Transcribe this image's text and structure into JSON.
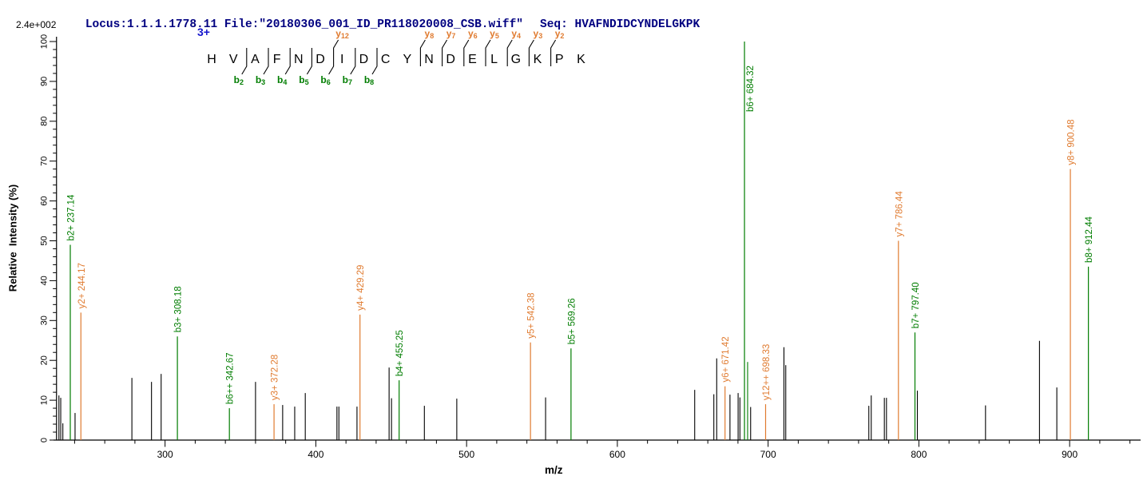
{
  "header": {
    "locus_file": "Locus:1.1.1.1778.11 File:\"20180306_001_ID_PR118020008_CSB.wiff\"",
    "seq": "Seq: HVAFNDIDCYNDELGKPK"
  },
  "peptide_panel": {
    "charge": "3+",
    "sequence": "HVAFNDIDCYNDELGKPK",
    "b_fragments": [
      {
        "ion": "b",
        "sub": "2",
        "cut_after": 2
      },
      {
        "ion": "b",
        "sub": "3",
        "cut_after": 3
      },
      {
        "ion": "b",
        "sub": "4",
        "cut_after": 4
      },
      {
        "ion": "b",
        "sub": "5",
        "cut_after": 5
      },
      {
        "ion": "b",
        "sub": "6",
        "cut_after": 6
      },
      {
        "ion": "b",
        "sub": "7",
        "cut_after": 7
      },
      {
        "ion": "b",
        "sub": "8",
        "cut_after": 8
      }
    ],
    "y_fragments": [
      {
        "ion": "y",
        "sub": "12",
        "cut_after": 6
      },
      {
        "ion": "y",
        "sub": "8",
        "cut_after": 10
      },
      {
        "ion": "y",
        "sub": "7",
        "cut_after": 11
      },
      {
        "ion": "y",
        "sub": "6",
        "cut_after": 12
      },
      {
        "ion": "y",
        "sub": "5",
        "cut_after": 13
      },
      {
        "ion": "y",
        "sub": "4",
        "cut_after": 14
      },
      {
        "ion": "y",
        "sub": "3",
        "cut_after": 15
      },
      {
        "ion": "y",
        "sub": "2",
        "cut_after": 16
      }
    ]
  },
  "chart_data": {
    "type": "bar",
    "subtype": "ms2-centroid-mass-spectrum",
    "xlabel": "m/z",
    "ylabel": "Relative  Intensity (%)",
    "max_intensity_label": "2.4e+002",
    "xlim": [
      228,
      947
    ],
    "ylim": [
      0,
      100
    ],
    "x_major_ticks": [
      300,
      400,
      500,
      600,
      700,
      800,
      900
    ],
    "x_minor_step": 20,
    "y_major_ticks": [
      0,
      10,
      20,
      30,
      40,
      50,
      60,
      70,
      80,
      90,
      100
    ],
    "y_minor_step": 2,
    "grid": false,
    "colors": {
      "b_ion": "#007d00",
      "y_ion": "#e07b30",
      "unassigned": "#000000"
    },
    "annotated_peaks": [
      {
        "label": "b2+ 237.14",
        "ion": "b",
        "mz": 237.14,
        "intensity": 49
      },
      {
        "label": "y2+ 244.17",
        "ion": "y",
        "mz": 244.17,
        "intensity": 32
      },
      {
        "label": "b3+ 308.18",
        "ion": "b",
        "mz": 308.18,
        "intensity": 26
      },
      {
        "label": "b6++ 342.67",
        "ion": "b",
        "mz": 342.67,
        "intensity": 8
      },
      {
        "label": "y3+ 372.28",
        "ion": "y",
        "mz": 372.28,
        "intensity": 9
      },
      {
        "label": "y4+ 429.29",
        "ion": "y",
        "mz": 429.29,
        "intensity": 31.5
      },
      {
        "label": "b4+ 455.25",
        "ion": "b",
        "mz": 455.25,
        "intensity": 15
      },
      {
        "label": "y5+ 542.38",
        "ion": "y",
        "mz": 542.38,
        "intensity": 24.5
      },
      {
        "label": "b5+ 569.26",
        "ion": "b",
        "mz": 569.26,
        "intensity": 23
      },
      {
        "label": "y6+ 671.42",
        "ion": "y",
        "mz": 671.42,
        "intensity": 13.5
      },
      {
        "label": "b6+ 684.32",
        "ion": "b",
        "mz": 684.32,
        "intensity": 100
      },
      {
        "label": "y12++ 698.33",
        "ion": "y",
        "mz": 698.33,
        "intensity": 9
      },
      {
        "label": "y7+ 786.44",
        "ion": "y",
        "mz": 786.44,
        "intensity": 50
      },
      {
        "label": "b7+ 797.40",
        "ion": "b",
        "mz": 797.4,
        "intensity": 27
      },
      {
        "label": "y8+ 900.48",
        "ion": "y",
        "mz": 900.48,
        "intensity": 68
      },
      {
        "label": "b8+ 912.44",
        "ion": "b",
        "mz": 912.44,
        "intensity": 43.5
      }
    ],
    "unlabeled_colored_peaks": [
      {
        "mz": 686.4,
        "intensity": 19.6,
        "ion": "b"
      }
    ],
    "unannotated_peaks": [
      [
        229.6,
        11.2
      ],
      [
        230.8,
        10.6
      ],
      [
        232.2,
        4.2
      ],
      [
        240.3,
        6.8
      ],
      [
        278.0,
        15.6
      ],
      [
        291.0,
        14.6
      ],
      [
        297.4,
        16.6
      ],
      [
        360.0,
        14.6
      ],
      [
        378.0,
        8.8
      ],
      [
        386.0,
        8.4
      ],
      [
        393.0,
        11.8
      ],
      [
        414.0,
        8.4
      ],
      [
        415.3,
        8.4
      ],
      [
        427.3,
        8.4
      ],
      [
        448.6,
        18.2
      ],
      [
        450.2,
        10.5
      ],
      [
        472.0,
        8.6
      ],
      [
        493.5,
        10.4
      ],
      [
        552.4,
        10.7
      ],
      [
        651.3,
        12.6
      ],
      [
        664.0,
        11.5
      ],
      [
        665.9,
        20.5
      ],
      [
        674.7,
        11.4
      ],
      [
        680.1,
        11.8
      ],
      [
        681.3,
        10.7
      ],
      [
        688.4,
        8.3
      ],
      [
        710.5,
        23.3
      ],
      [
        711.7,
        18.8
      ],
      [
        766.8,
        8.6
      ],
      [
        768.4,
        11.2
      ],
      [
        777.1,
        10.6
      ],
      [
        778.5,
        10.6
      ],
      [
        799.0,
        12.4
      ],
      [
        844.2,
        8.7
      ],
      [
        880.0,
        24.9
      ],
      [
        891.5,
        13.2
      ]
    ]
  }
}
